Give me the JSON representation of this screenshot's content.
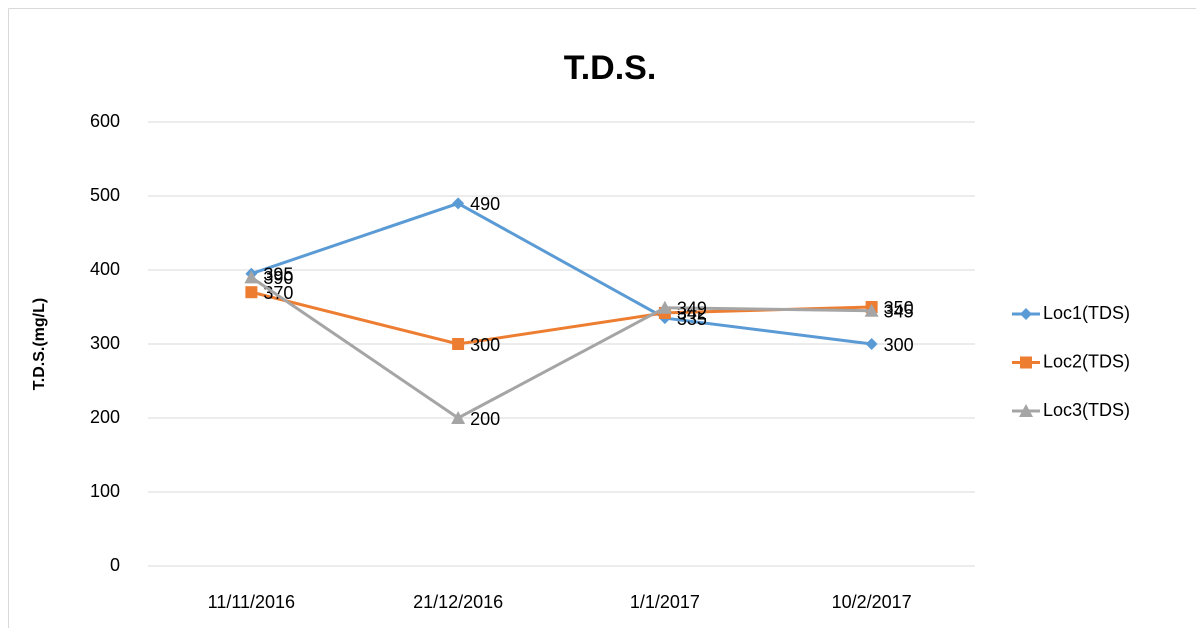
{
  "chart_data": {
    "type": "line",
    "title": "T.D.S.",
    "y_label": "T.D.S.(mg/L)",
    "categories": [
      "11/11/2016",
      "21/12/2016",
      "1/1/2017",
      "10/2/2017"
    ],
    "series": [
      {
        "name": "Loc1(TDS)",
        "color": "#5b9bd5",
        "marker": "diamond",
        "values": [
          395,
          490,
          335,
          300
        ]
      },
      {
        "name": "Loc2(TDS)",
        "color": "#ed7d31",
        "marker": "square",
        "values": [
          370,
          300,
          342,
          350
        ]
      },
      {
        "name": "Loc3(TDS)",
        "color": "#a5a5a5",
        "marker": "triangle",
        "values": [
          390,
          200,
          349,
          345
        ]
      }
    ],
    "ylim": [
      0,
      600
    ],
    "yticks": [
      0,
      100,
      200,
      300,
      400,
      500,
      600
    ],
    "grid": true,
    "legend": "right"
  }
}
